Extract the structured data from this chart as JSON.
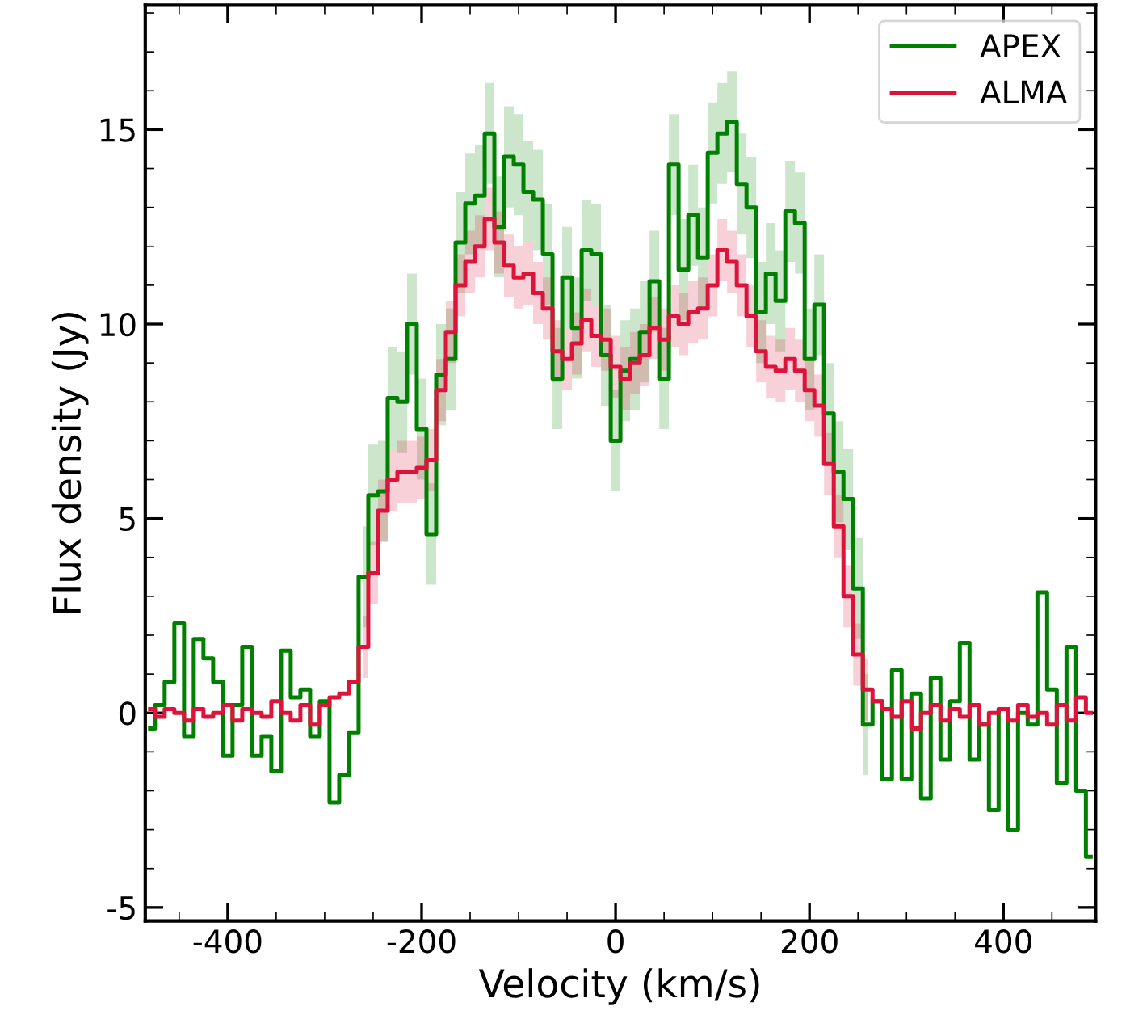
{
  "chart_data": {
    "type": "step",
    "xlabel": "Velocity (km/s)",
    "ylabel": "Flux density (Jy)",
    "xlim": [
      -485,
      495
    ],
    "ylim": [
      -5.35,
      18.2
    ],
    "xticks": [
      -400,
      -200,
      0,
      200,
      400
    ],
    "yticks": [
      -5,
      0,
      5,
      10,
      15
    ],
    "grid": false,
    "legend": "top right",
    "x": [
      -480,
      -470,
      -460,
      -450,
      -440,
      -430,
      -420,
      -410,
      -400,
      -390,
      -380,
      -370,
      -360,
      -350,
      -340,
      -330,
      -320,
      -310,
      -300,
      -290,
      -280,
      -270,
      -260,
      -250,
      -240,
      -230,
      -220,
      -210,
      -200,
      -190,
      -180,
      -170,
      -160,
      -150,
      -140,
      -130,
      -120,
      -110,
      -100,
      -90,
      -80,
      -70,
      -60,
      -50,
      -40,
      -30,
      -20,
      -10,
      0,
      10,
      20,
      30,
      40,
      50,
      60,
      70,
      80,
      90,
      100,
      110,
      120,
      130,
      140,
      150,
      160,
      170,
      180,
      190,
      200,
      210,
      220,
      230,
      240,
      250,
      260,
      270,
      280,
      290,
      300,
      310,
      320,
      330,
      340,
      350,
      360,
      370,
      380,
      390,
      400,
      410,
      420,
      430,
      440,
      450,
      460,
      470,
      480,
      490
    ],
    "series": [
      {
        "name": "APEX",
        "color": "#008000",
        "values": [
          -0.4,
          0.2,
          0.8,
          2.3,
          -0.6,
          1.9,
          1.4,
          0.8,
          -1.1,
          0.2,
          1.7,
          -1.1,
          -0.6,
          -1.5,
          1.6,
          0.4,
          0.6,
          -0.6,
          0.3,
          -2.3,
          -1.6,
          -0.5,
          3.5,
          5.6,
          5.7,
          8.1,
          8.0,
          10.0,
          7.3,
          4.6,
          8.7,
          9.1,
          12.1,
          13.1,
          13.3,
          14.9,
          12.5,
          14.3,
          14.1,
          13.4,
          13.2,
          11.8,
          8.6,
          11.2,
          9.9,
          11.9,
          11.8,
          9.2,
          7.0,
          8.8,
          9.1,
          9.8,
          11.1,
          8.6,
          14.1,
          11.4,
          12.8,
          11.7,
          14.4,
          14.9,
          15.2,
          13.6,
          13.0,
          10.3,
          11.3,
          10.6,
          12.9,
          12.6,
          9.1,
          10.5,
          7.7,
          6.2,
          5.5,
          3.2,
          -0.3,
          0.3,
          -1.7,
          1.1,
          -1.7,
          0.5,
          -2.2,
          0.9,
          -1.2,
          0.3,
          1.8,
          -1.2,
          -0.3,
          -2.5,
          0.1,
          -3.0,
          0.0,
          -0.3,
          3.1,
          0.6,
          -1.8,
          1.7,
          -2.0,
          -3.7
        ],
        "upper": [
          null,
          null,
          null,
          null,
          null,
          null,
          null,
          null,
          null,
          null,
          null,
          null,
          null,
          null,
          null,
          null,
          null,
          null,
          null,
          null,
          null,
          null,
          4.8,
          6.9,
          7.0,
          9.4,
          9.3,
          11.3,
          8.6,
          5.9,
          10.0,
          10.4,
          13.4,
          14.4,
          14.6,
          16.2,
          13.8,
          15.6,
          15.4,
          14.7,
          14.5,
          13.1,
          9.9,
          12.5,
          11.2,
          13.2,
          13.1,
          10.5,
          8.3,
          10.1,
          10.4,
          11.1,
          12.4,
          9.9,
          15.4,
          12.7,
          14.1,
          13.0,
          15.7,
          16.2,
          16.5,
          14.9,
          14.3,
          11.6,
          12.6,
          11.9,
          14.2,
          13.9,
          10.4,
          11.8,
          9.0,
          7.5,
          6.8,
          4.5,
          1.0,
          null,
          null,
          null,
          null,
          null,
          null,
          null,
          null,
          null,
          null,
          null,
          null,
          null,
          null,
          null,
          null,
          null,
          null,
          null,
          null,
          null,
          null,
          null
        ],
        "lower": [
          null,
          null,
          null,
          null,
          null,
          null,
          null,
          null,
          null,
          null,
          null,
          null,
          null,
          null,
          null,
          null,
          null,
          null,
          null,
          null,
          null,
          null,
          2.2,
          4.3,
          4.4,
          6.8,
          6.7,
          8.7,
          6.0,
          3.3,
          7.4,
          7.8,
          10.8,
          11.8,
          12.0,
          13.6,
          11.2,
          13.0,
          12.8,
          12.1,
          11.9,
          10.5,
          7.3,
          9.9,
          8.6,
          10.6,
          10.5,
          7.9,
          5.7,
          7.5,
          7.8,
          8.5,
          9.8,
          7.3,
          12.8,
          10.1,
          11.5,
          10.4,
          13.1,
          13.6,
          13.9,
          12.3,
          11.7,
          9.0,
          10.0,
          9.3,
          11.6,
          11.3,
          7.8,
          9.2,
          6.4,
          4.9,
          4.2,
          1.9,
          -1.6,
          null,
          null,
          null,
          null,
          null,
          null,
          null,
          null,
          null,
          null,
          null,
          null,
          null,
          null,
          null,
          null,
          null,
          null,
          null,
          null,
          null,
          null,
          null
        ]
      },
      {
        "name": "ALMA",
        "color": "#dc143c",
        "values": [
          0.1,
          -0.1,
          0.1,
          0.0,
          -0.2,
          0.1,
          -0.1,
          0.0,
          0.2,
          -0.2,
          0.1,
          0.0,
          -0.1,
          0.3,
          0.0,
          -0.2,
          0.2,
          -0.3,
          0.2,
          0.4,
          0.5,
          0.8,
          1.7,
          3.6,
          5.2,
          6.0,
          6.2,
          6.2,
          6.3,
          6.5,
          8.3,
          9.8,
          11.0,
          11.6,
          12.0,
          12.7,
          12.1,
          11.5,
          11.2,
          11.3,
          10.8,
          10.4,
          9.3,
          9.1,
          9.5,
          10.1,
          9.7,
          9.6,
          8.9,
          8.6,
          9.0,
          9.2,
          9.9,
          9.6,
          10.2,
          10.0,
          10.3,
          10.4,
          11.0,
          11.9,
          11.6,
          11.0,
          10.2,
          9.3,
          8.9,
          8.8,
          9.1,
          8.8,
          8.3,
          7.9,
          6.4,
          4.8,
          3.0,
          1.5,
          0.6,
          0.3,
          0.1,
          -0.1,
          0.3,
          -0.4,
          0.0,
          0.2,
          -0.2,
          0.1,
          -0.1,
          0.2,
          -0.3,
          0.0,
          0.1,
          -0.2,
          0.2,
          -0.1,
          0.0,
          -0.3,
          0.2,
          -0.2,
          0.4,
          0.0
        ],
        "upper": [
          null,
          null,
          null,
          null,
          null,
          null,
          null,
          null,
          null,
          null,
          null,
          null,
          null,
          null,
          null,
          null,
          null,
          null,
          null,
          null,
          null,
          null,
          2.5,
          4.4,
          6.0,
          6.8,
          7.0,
          7.0,
          7.1,
          7.3,
          9.1,
          10.6,
          11.8,
          12.4,
          12.8,
          13.5,
          12.9,
          12.3,
          12.0,
          12.1,
          11.6,
          11.2,
          10.1,
          9.9,
          10.3,
          10.9,
          10.5,
          10.4,
          9.7,
          9.4,
          9.8,
          10.0,
          10.7,
          10.4,
          11.0,
          10.8,
          11.1,
          11.2,
          11.8,
          12.7,
          12.4,
          11.8,
          11.0,
          10.1,
          9.7,
          9.6,
          9.9,
          9.6,
          9.1,
          8.7,
          7.2,
          5.6,
          3.8,
          2.3,
          1.4,
          null,
          null,
          null,
          null,
          null,
          null,
          null,
          null,
          null,
          null,
          null,
          null,
          null,
          null,
          null,
          null,
          null,
          null,
          null,
          null,
          null,
          null,
          null
        ],
        "lower": [
          null,
          null,
          null,
          null,
          null,
          null,
          null,
          null,
          null,
          null,
          null,
          null,
          null,
          null,
          null,
          null,
          null,
          null,
          null,
          null,
          null,
          null,
          0.9,
          2.8,
          4.4,
          5.2,
          5.4,
          5.4,
          5.5,
          5.7,
          7.5,
          9.0,
          10.2,
          10.8,
          11.2,
          11.9,
          11.3,
          10.7,
          10.4,
          10.5,
          10.0,
          9.6,
          8.5,
          8.3,
          8.7,
          9.3,
          8.9,
          8.8,
          8.1,
          7.8,
          8.2,
          8.4,
          9.1,
          8.8,
          9.4,
          9.2,
          9.5,
          9.6,
          10.2,
          11.1,
          10.8,
          10.2,
          9.4,
          8.5,
          8.1,
          8.0,
          8.3,
          8.0,
          7.5,
          7.1,
          5.6,
          4.0,
          2.2,
          0.7,
          -0.2,
          null,
          null,
          null,
          null,
          null,
          null,
          null,
          null,
          null,
          null,
          null,
          null,
          null,
          null,
          null,
          null,
          null,
          null,
          null,
          null,
          null,
          null,
          null
        ]
      }
    ]
  }
}
